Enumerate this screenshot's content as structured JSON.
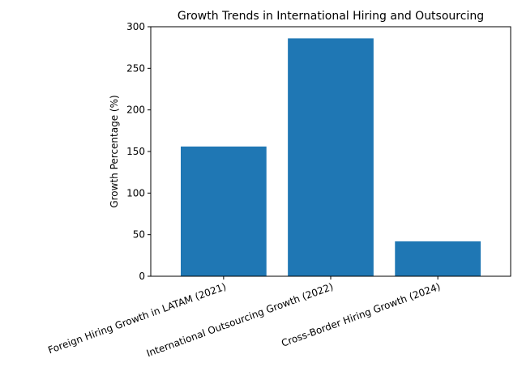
{
  "chart_data": {
    "type": "bar",
    "title": "Growth Trends in International Hiring and Outsourcing",
    "xlabel": "",
    "ylabel": "Growth Percentage (%)",
    "categories": [
      "Foreign Hiring Growth in LATAM (2021)",
      "International Outsourcing Growth (2022)",
      "Cross-Border Hiring Growth (2024)"
    ],
    "values": [
      156,
      286,
      42
    ],
    "ylim": [
      0,
      300
    ],
    "yticks": [
      0,
      50,
      100,
      150,
      200,
      250,
      300
    ],
    "bar_color": "#1f77b4",
    "grid": false,
    "legend": "none"
  }
}
